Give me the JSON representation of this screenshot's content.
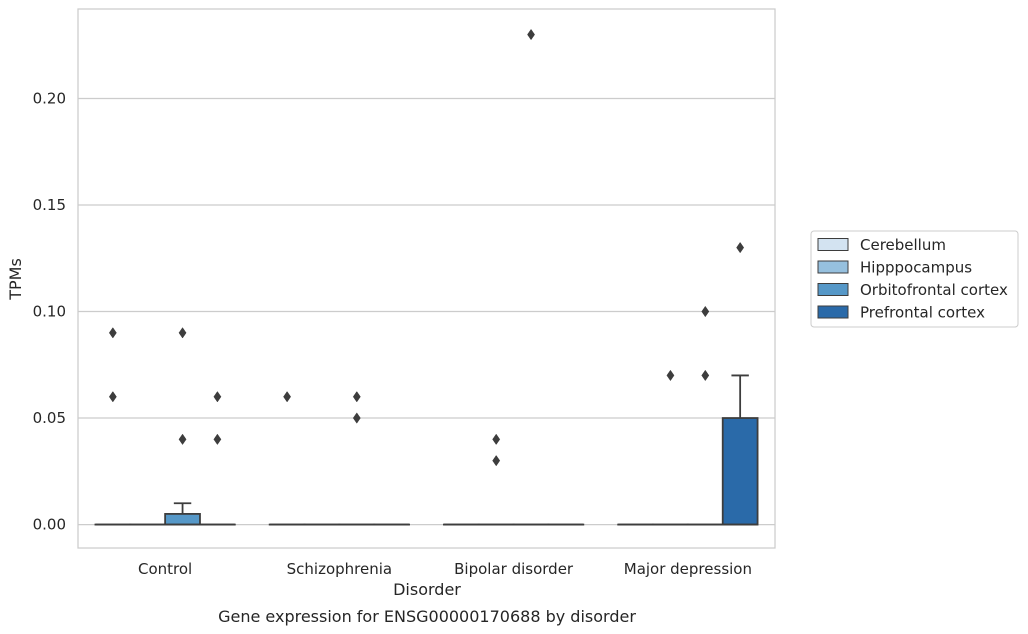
{
  "chart_data": {
    "type": "box",
    "title": "",
    "caption": "Gene expression for ENSG00000170688 by disorder",
    "xlabel": "Disorder",
    "ylabel": "TPMs",
    "ylim": [
      -0.011,
      0.242
    ],
    "yticks": [
      0.0,
      0.05,
      0.1,
      0.15,
      0.2
    ],
    "ytick_labels": [
      "0.00",
      "0.05",
      "0.10",
      "0.15",
      "0.20"
    ],
    "grid": true,
    "legend_position": "right",
    "categories": [
      "Control",
      "Schizophrenia",
      "Bipolar disorder",
      "Major depression"
    ],
    "series": [
      {
        "name": "Cerebellum",
        "color": "#d3e3f1",
        "boxes": [
          {
            "q1": 0,
            "median": 0,
            "q3": 0,
            "whisker_low": 0,
            "whisker_high": 0,
            "outliers": [
              0.09,
              0.06
            ]
          },
          {
            "q1": 0,
            "median": 0,
            "q3": 0,
            "whisker_low": 0,
            "whisker_high": 0,
            "outliers": [
              0.06
            ]
          },
          {
            "q1": 0,
            "median": 0,
            "q3": 0,
            "whisker_low": 0,
            "whisker_high": 0,
            "outliers": []
          },
          {
            "q1": 0,
            "median": 0,
            "q3": 0,
            "whisker_low": 0,
            "whisker_high": 0,
            "outliers": []
          }
        ]
      },
      {
        "name": "Hipppocampus",
        "color": "#96c0de",
        "boxes": [
          {
            "q1": 0,
            "median": 0,
            "q3": 0,
            "whisker_low": 0,
            "whisker_high": 0,
            "outliers": []
          },
          {
            "q1": 0,
            "median": 0,
            "q3": 0,
            "whisker_low": 0,
            "whisker_high": 0,
            "outliers": []
          },
          {
            "q1": 0,
            "median": 0,
            "q3": 0,
            "whisker_low": 0,
            "whisker_high": 0,
            "outliers": [
              0.04,
              0.03
            ]
          },
          {
            "q1": 0,
            "median": 0,
            "q3": 0,
            "whisker_low": 0,
            "whisker_high": 0,
            "outliers": [
              0.07
            ]
          }
        ]
      },
      {
        "name": "Orbitofrontal cortex",
        "color": "#5698c8",
        "boxes": [
          {
            "q1": 0,
            "median": 0,
            "q3": 0.005,
            "whisker_low": 0,
            "whisker_high": 0.01,
            "outliers": [
              0.09,
              0.04
            ]
          },
          {
            "q1": 0,
            "median": 0,
            "q3": 0,
            "whisker_low": 0,
            "whisker_high": 0,
            "outliers": [
              0.06,
              0.05
            ]
          },
          {
            "q1": 0,
            "median": 0,
            "q3": 0,
            "whisker_low": 0,
            "whisker_high": 0,
            "outliers": [
              0.23
            ]
          },
          {
            "q1": 0,
            "median": 0,
            "q3": 0,
            "whisker_low": 0,
            "whisker_high": 0,
            "outliers": [
              0.07,
              0.1
            ]
          }
        ]
      },
      {
        "name": "Prefrontal cortex",
        "color": "#2a6aa9",
        "boxes": [
          {
            "q1": 0,
            "median": 0,
            "q3": 0,
            "whisker_low": 0,
            "whisker_high": 0,
            "outliers": [
              0.06,
              0.04
            ]
          },
          {
            "q1": 0,
            "median": 0,
            "q3": 0,
            "whisker_low": 0,
            "whisker_high": 0,
            "outliers": []
          },
          {
            "q1": 0,
            "median": 0,
            "q3": 0,
            "whisker_low": 0,
            "whisker_high": 0,
            "outliers": []
          },
          {
            "q1": 0,
            "median": 0,
            "q3": 0.05,
            "whisker_low": 0,
            "whisker_high": 0.07,
            "outliers": [
              0.13
            ]
          }
        ]
      }
    ]
  }
}
